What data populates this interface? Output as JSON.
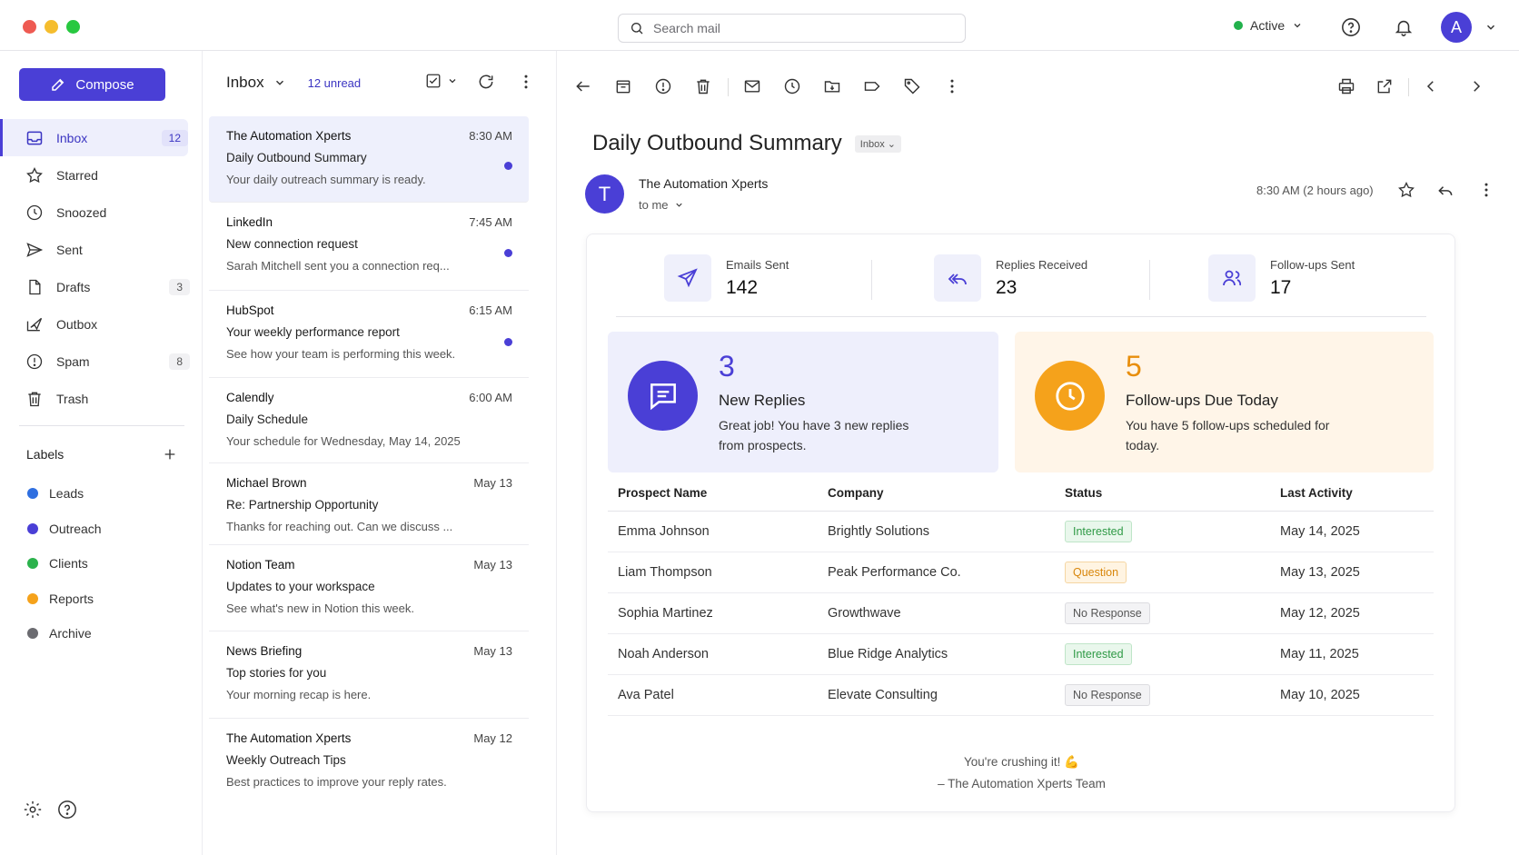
{
  "window": {
    "dots": [
      "#ee5a52",
      "#f5bd2e",
      "#28c840"
    ]
  },
  "search": {
    "placeholder": "Search mail"
  },
  "header": {
    "status": "Active",
    "avatar_letter": "A"
  },
  "sidebar": {
    "compose": "Compose",
    "items": [
      {
        "label": "Inbox",
        "count": "12",
        "icon": "inbox-icon"
      },
      {
        "label": "Starred",
        "count": "",
        "icon": "star-icon"
      },
      {
        "label": "Snoozed",
        "count": "",
        "icon": "clock-icon"
      },
      {
        "label": "Sent",
        "count": "",
        "icon": "send-icon"
      },
      {
        "label": "Drafts",
        "count": "3",
        "icon": "file-icon"
      },
      {
        "label": "Outbox",
        "count": "",
        "icon": "outbox-icon"
      },
      {
        "label": "Spam",
        "count": "8",
        "icon": "alert-icon"
      },
      {
        "label": "Trash",
        "count": "",
        "icon": "trash-icon"
      }
    ],
    "labels_title": "Labels",
    "labels": [
      {
        "name": "Leads",
        "color": "#2f6fe0"
      },
      {
        "name": "Outreach",
        "color": "#4a3fd6"
      },
      {
        "name": "Clients",
        "color": "#2bb24c"
      },
      {
        "name": "Reports",
        "color": "#f5a21b"
      },
      {
        "name": "Archive",
        "color": "#6b6b70"
      }
    ]
  },
  "list": {
    "title": "Inbox",
    "unread": "12 unread",
    "mails": [
      {
        "sender": "The Automation Xperts",
        "time": "8:30 AM",
        "subject": "Daily Outbound Summary",
        "preview": "Your daily outreach summary is ready.",
        "unread": true
      },
      {
        "sender": "LinkedIn",
        "time": "7:45 AM",
        "subject": "New connection request",
        "preview": "Sarah Mitchell sent you a connection req...",
        "unread": true
      },
      {
        "sender": "HubSpot",
        "time": "6:15 AM",
        "subject": "Your weekly performance report",
        "preview": "See how your team is performing this week.",
        "unread": true
      },
      {
        "sender": "Calendly",
        "time": "6:00 AM",
        "subject": "Daily Schedule",
        "preview": "Your schedule for Wednesday, May 14, 2025",
        "unread": false
      },
      {
        "sender": "Michael Brown",
        "time": "May 13",
        "subject": "Re: Partnership Opportunity",
        "preview": "Thanks for reaching out. Can we discuss ...",
        "unread": false
      },
      {
        "sender": "Notion Team",
        "time": "May 13",
        "subject": "Updates to your workspace",
        "preview": "See what's new in Notion this week.",
        "unread": false
      },
      {
        "sender": "News Briefing",
        "time": "May 13",
        "subject": "Top stories for you",
        "preview": "Your morning recap is here.",
        "unread": false
      },
      {
        "sender": "The Automation Xperts",
        "time": "May 12",
        "subject": "Weekly Outreach Tips",
        "preview": "Best practices to improve your reply rates.",
        "unread": false
      }
    ]
  },
  "reader": {
    "subject": "Daily Outbound Summary",
    "tag": "Inbox",
    "sender_initial": "T",
    "sender": "The Automation Xperts",
    "to": "to me",
    "time": "8:30 AM (2 hours ago)",
    "stats": [
      {
        "label": "Emails Sent",
        "value": "142",
        "icon": "send-icon"
      },
      {
        "label": "Replies Received",
        "value": "23",
        "icon": "reply-all-icon"
      },
      {
        "label": "Follow-ups Sent",
        "value": "17",
        "icon": "users-icon"
      }
    ],
    "promos": [
      {
        "number": "3",
        "heading": "New Replies",
        "body": "Great job! You have 3 new replies from prospects.",
        "color": "#4a3fd6",
        "bg": "#eeeffc"
      },
      {
        "number": "5",
        "heading": "Follow-ups Due Today",
        "body": "You have 5 follow-ups scheduled for today.",
        "color": "#f5a21b",
        "bg": "#fff5e8"
      }
    ],
    "table": {
      "headers": [
        "Prospect Name",
        "Company",
        "Status",
        "Last Activity"
      ],
      "rows": [
        {
          "name": "Emma Johnson",
          "company": "Brightly Solutions",
          "status": "Interested",
          "date": "May 14, 2025"
        },
        {
          "name": "Liam Thompson",
          "company": "Peak Performance Co.",
          "status": "Question",
          "date": "May 13, 2025"
        },
        {
          "name": "Sophia Martinez",
          "company": "Growthwave",
          "status": "No Response",
          "date": "May 12, 2025"
        },
        {
          "name": "Noah Anderson",
          "company": "Blue Ridge Analytics",
          "status": "Interested",
          "date": "May 11, 2025"
        },
        {
          "name": "Ava Patel",
          "company": "Elevate Consulting",
          "status": "No Response",
          "date": "May 10, 2025"
        }
      ]
    },
    "status_colors": {
      "Interested": {
        "fg": "#2f9a46",
        "bg": "#e9f7ec",
        "border": "#bfe5c8"
      },
      "Question": {
        "fg": "#d8860b",
        "bg": "#fff4e2",
        "border": "#f5d6a3"
      },
      "No Response": {
        "fg": "#555555",
        "bg": "#f3f3f5",
        "border": "#dcdce0"
      }
    },
    "footer1": "You're crushing it! 💪",
    "footer2": "– The Automation Xperts Team"
  }
}
